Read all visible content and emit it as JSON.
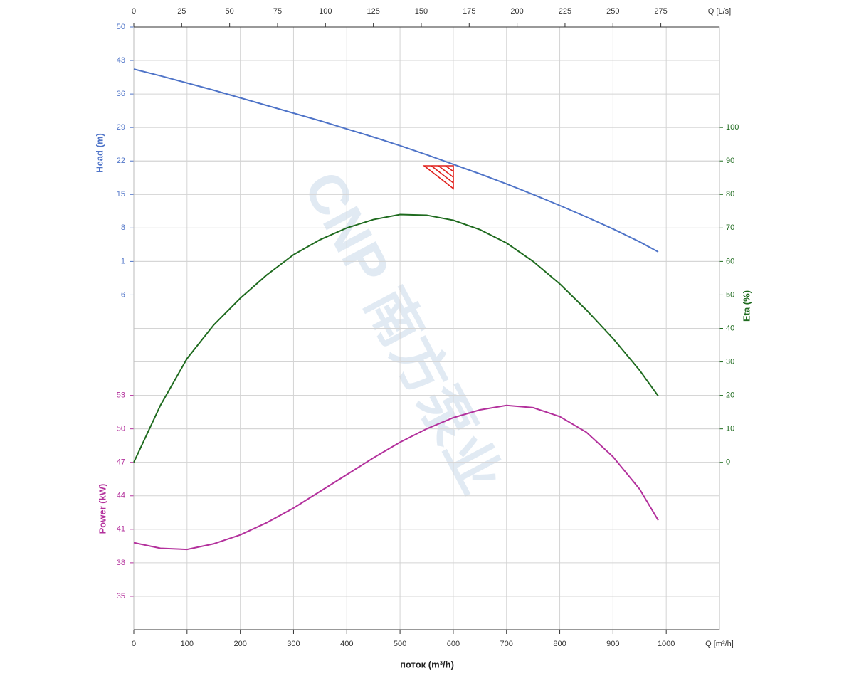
{
  "chart_data": {
    "type": "line",
    "x_label_bottom": "Q [m³/h]",
    "x_label_top": "Q [L/s]",
    "x_title": "поток (m³/h)",
    "y_label": "Head (m)",
    "y2_label": "Eta (%)",
    "y3_label": "Power (kW)",
    "watermark": "CNP 南方泵业",
    "xlim": [
      0,
      1100
    ],
    "xticks": [
      0,
      100,
      200,
      300,
      400,
      500,
      600,
      700,
      800,
      900,
      1000
    ],
    "x2lim": [
      0,
      305.6
    ],
    "x2ticks": [
      0,
      25,
      50,
      75,
      100,
      125,
      150,
      175,
      200,
      225,
      250,
      275
    ],
    "ylim": [
      -76,
      50
    ],
    "yticks": [
      50,
      43,
      36,
      29,
      22,
      15,
      8,
      1,
      -6
    ],
    "y2lim": [
      -50,
      130
    ],
    "y2ticks": [
      0,
      10,
      20,
      30,
      40,
      50,
      60,
      70,
      80,
      90,
      100
    ],
    "y3lim": [
      32,
      86
    ],
    "y3ticks": [
      35,
      38,
      41,
      44,
      47,
      50,
      53
    ],
    "grid": true,
    "x": [
      0,
      50,
      100,
      150,
      200,
      250,
      300,
      350,
      400,
      450,
      500,
      550,
      600,
      650,
      700,
      750,
      800,
      850,
      900,
      950,
      985
    ],
    "series": [
      {
        "name": "Head (m)",
        "color": "#4f74c8",
        "axis": "y",
        "values": [
          41.2,
          39.8,
          38.3,
          36.8,
          35.2,
          33.6,
          32.0,
          30.4,
          28.7,
          27.0,
          25.2,
          23.3,
          21.3,
          19.3,
          17.2,
          15.0,
          12.7,
          10.3,
          7.8,
          5.1,
          3.0
        ]
      },
      {
        "name": "Eta (%)",
        "color": "#1f6b1f",
        "axis": "y2",
        "values": [
          0,
          17,
          31,
          41,
          49,
          56,
          62,
          66.5,
          70,
          72.5,
          74,
          73.8,
          72.3,
          69.5,
          65.5,
          60,
          53.3,
          45.5,
          37,
          27.5,
          19.8
        ]
      },
      {
        "name": "Power (kW)",
        "color": "#b3309c",
        "axis": "y3",
        "values": [
          39.8,
          39.3,
          39.2,
          39.7,
          40.5,
          41.6,
          42.9,
          44.4,
          45.9,
          47.4,
          48.8,
          50.0,
          51.0,
          51.7,
          52.1,
          51.9,
          51.1,
          49.7,
          47.5,
          44.6,
          41.8
        ]
      }
    ]
  }
}
